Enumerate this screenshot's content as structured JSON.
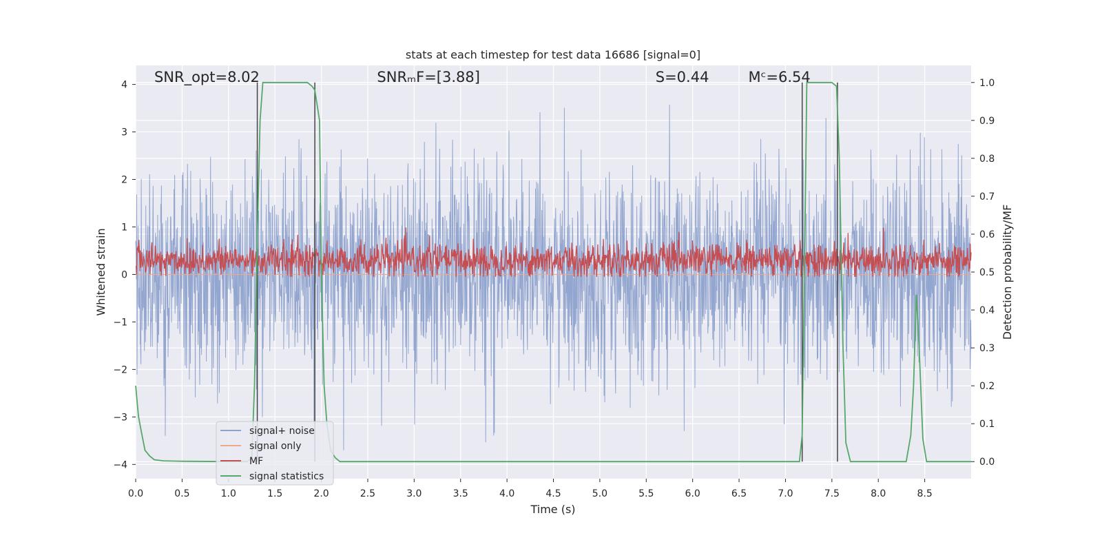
{
  "chart_data": {
    "type": "line",
    "title": "stats at each timestep for test data 16686 [signal=0]",
    "xlabel": "Time (s)",
    "ylabel": "Whitened strain",
    "ylabel_right": "Detection probability/MF",
    "xlim": [
      0.0,
      9.0
    ],
    "ylim": [
      -4.3,
      4.4
    ],
    "ylim_right": [
      -0.045,
      1.045
    ],
    "x_ticks": [
      "0.0",
      "0.5",
      "1.0",
      "1.5",
      "2.0",
      "2.5",
      "3.0",
      "3.5",
      "4.0",
      "4.5",
      "5.0",
      "5.5",
      "6.0",
      "6.5",
      "7.0",
      "7.5",
      "8.0",
      "8.5"
    ],
    "x_tick_values": [
      0.0,
      0.5,
      1.0,
      1.5,
      2.0,
      2.5,
      3.0,
      3.5,
      4.0,
      4.5,
      5.0,
      5.5,
      6.0,
      6.5,
      7.0,
      7.5,
      8.0,
      8.5
    ],
    "y_ticks": [
      "−4",
      "−3",
      "−2",
      "−1",
      "0",
      "1",
      "2",
      "3",
      "4"
    ],
    "y_tick_values": [
      -4,
      -3,
      -2,
      -1,
      0,
      1,
      2,
      3,
      4
    ],
    "y_ticks_right": [
      "0.0",
      "0.1",
      "0.2",
      "0.3",
      "0.4",
      "0.5",
      "0.6",
      "0.7",
      "0.8",
      "0.9",
      "1.0"
    ],
    "y_tick_values_right": [
      0.0,
      0.1,
      0.2,
      0.3,
      0.4,
      0.5,
      0.6,
      0.7,
      0.8,
      0.9,
      1.0
    ],
    "grid": true,
    "legend_placement": "lower-left",
    "annotations": [
      {
        "id": "snr_opt",
        "text": "SNR_opt=8.02",
        "x": 0.2
      },
      {
        "id": "snr_mf",
        "text": "SNRₘF=[3.88]",
        "x": 2.6
      },
      {
        "id": "s_val",
        "text": "S=0.44",
        "x": 5.6
      },
      {
        "id": "mc_val",
        "text": "Mᶜ=6.54",
        "x": 6.6
      }
    ],
    "annotation_y": 4.05,
    "vertical_markers": [
      1.31,
      1.93,
      7.18,
      7.56
    ],
    "series": [
      {
        "name": "signal+ noise",
        "axis": "left",
        "color": "#8ea2cc",
        "noise_band": {
          "sigma": 1.0,
          "peak_max": 4.0,
          "peak_min": -3.7
        }
      },
      {
        "name": "signal only",
        "axis": "left",
        "color": "#f0a88a",
        "values_note": "flat at zero"
      },
      {
        "name": "MF",
        "axis": "left",
        "color": "#c44e52",
        "noise_band": {
          "center": 0.3,
          "sigma": 0.18,
          "peak_max": 1.0,
          "peak_min": -0.05
        }
      },
      {
        "name": "signal statistics",
        "axis": "right",
        "color": "#55a868",
        "x": [
          0.0,
          0.03,
          0.06,
          0.1,
          0.15,
          0.2,
          0.3,
          0.5,
          1.0,
          1.2,
          1.25,
          1.28,
          1.31,
          1.34,
          1.37,
          1.4,
          1.5,
          1.7,
          1.85,
          1.9,
          1.93,
          1.98,
          2.0,
          2.03,
          2.06,
          2.1,
          2.15,
          2.2,
          3.0,
          4.0,
          5.0,
          6.0,
          7.0,
          7.15,
          7.18,
          7.21,
          7.23,
          7.26,
          7.3,
          7.4,
          7.5,
          7.55,
          7.58,
          7.62,
          7.65,
          7.7,
          7.75,
          7.8,
          8.0,
          8.2,
          8.3,
          8.35,
          8.38,
          8.41,
          8.44,
          8.48,
          8.52,
          8.56,
          8.6,
          9.0
        ],
        "y": [
          0.2,
          0.12,
          0.08,
          0.03,
          0.015,
          0.005,
          0.002,
          0.001,
          0.0,
          0.0,
          0.01,
          0.2,
          0.6,
          0.9,
          1.0,
          1.0,
          1.0,
          1.0,
          1.0,
          0.99,
          0.98,
          0.9,
          0.5,
          0.2,
          0.1,
          0.03,
          0.01,
          0.0,
          0.0,
          0.0,
          0.0,
          0.0,
          0.0,
          0.0,
          0.07,
          0.6,
          1.0,
          1.0,
          1.0,
          1.0,
          1.0,
          0.99,
          0.8,
          0.3,
          0.05,
          0.0,
          0.0,
          0.0,
          0.0,
          0.0,
          0.0,
          0.07,
          0.2,
          0.44,
          0.3,
          0.06,
          0.0,
          0.0,
          0.0,
          0.0
        ]
      }
    ]
  }
}
